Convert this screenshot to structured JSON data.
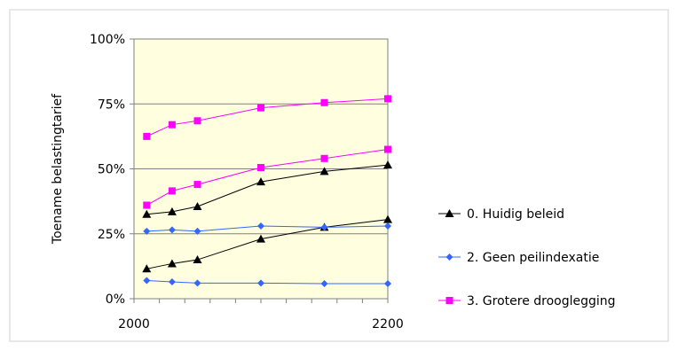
{
  "chart_data": {
    "type": "line",
    "xlabel": "",
    "ylabel": "Toename belastingtarief",
    "xlim": [
      2000,
      2200
    ],
    "ylim": [
      0,
      100
    ],
    "x_ticks": [
      2000,
      2200
    ],
    "x_tick_labels": [
      "2000",
      "2200"
    ],
    "y_ticks": [
      0,
      25,
      50,
      75,
      100
    ],
    "y_tick_labels": [
      "0%",
      "25%",
      "50%",
      "75%",
      "100%"
    ],
    "grid": "horizontal",
    "plot_background": "#ffffe0",
    "legend_position": "right",
    "series": [
      {
        "name": "0. Huidig beleid",
        "color": "#000000",
        "marker": "triangle",
        "x": [
          2010,
          2030,
          2050,
          2100,
          2150,
          2200
        ],
        "y": [
          32.5,
          33.5,
          35.5,
          45,
          49,
          51.5
        ]
      },
      {
        "name": "0. Huidig beleid",
        "color": "#000000",
        "marker": "triangle",
        "x": [
          2010,
          2030,
          2050,
          2100,
          2150,
          2200
        ],
        "y": [
          11.5,
          13.5,
          15,
          23,
          27.5,
          30.5
        ]
      },
      {
        "name": "2. Geen peilindexatie",
        "color": "#3366ff",
        "marker": "diamond",
        "x": [
          2010,
          2030,
          2050,
          2100,
          2150,
          2200
        ],
        "y": [
          26,
          26.5,
          26,
          28,
          27.5,
          28
        ]
      },
      {
        "name": "2. Geen peilindexatie",
        "color": "#3366ff",
        "marker": "diamond",
        "x": [
          2010,
          2030,
          2050,
          2100,
          2150,
          2200
        ],
        "y": [
          7,
          6.5,
          6,
          6,
          5.8,
          5.8
        ]
      },
      {
        "name": "3. Grotere drooglegging",
        "color": "#ff00ff",
        "marker": "square",
        "x": [
          2010,
          2030,
          2050,
          2100,
          2150,
          2200
        ],
        "y": [
          62.5,
          67,
          68.5,
          73.5,
          75.5,
          77
        ]
      },
      {
        "name": "3. Grotere drooglegging",
        "color": "#ff00ff",
        "marker": "square",
        "x": [
          2010,
          2030,
          2050,
          2100,
          2150,
          2200
        ],
        "y": [
          36,
          41.5,
          44,
          50.5,
          54,
          57.5
        ]
      }
    ],
    "legend": [
      {
        "label": "0. Huidig beleid",
        "color": "#000000",
        "marker": "triangle"
      },
      {
        "label": "2. Geen peilindexatie",
        "color": "#3366ff",
        "marker": "diamond"
      },
      {
        "label": "3. Grotere drooglegging",
        "color": "#ff00ff",
        "marker": "square"
      }
    ]
  }
}
